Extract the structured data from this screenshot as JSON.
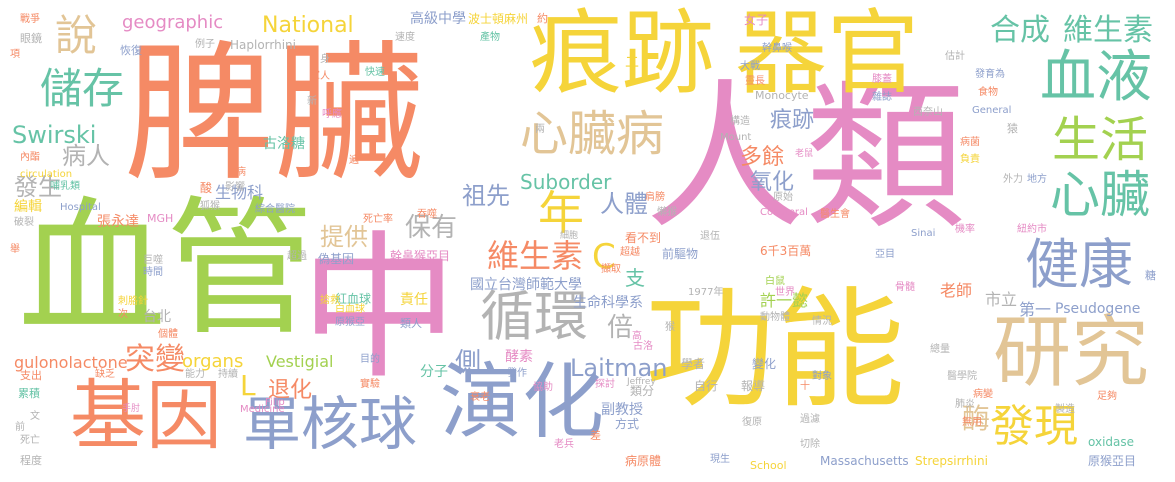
{
  "palette": {
    "salmon": "#f58a65",
    "yellow": "#f5d43a",
    "pink": "#e58bc4",
    "green": "#a3d150",
    "blue": "#8d9fcb",
    "teal": "#66c3a6",
    "tan": "#e2c596",
    "gray": "#b3b3b3"
  },
  "words": [
    {
      "text": "脾臟",
      "color": "salmon"
    },
    {
      "text": "人類",
      "color": "pink"
    },
    {
      "text": "血管",
      "color": "green"
    },
    {
      "text": "中",
      "color": "pink"
    },
    {
      "text": "功能",
      "color": "yellow"
    },
    {
      "text": "痕跡",
      "color": "yellow"
    },
    {
      "text": "器官",
      "color": "yellow"
    },
    {
      "text": "基因",
      "color": "salmon"
    },
    {
      "text": "演化",
      "color": "blue"
    },
    {
      "text": "研究",
      "color": "tan"
    },
    {
      "text": "單核球",
      "color": "blue"
    },
    {
      "text": "血液",
      "color": "teal"
    },
    {
      "text": "健康",
      "color": "blue"
    },
    {
      "text": "循環",
      "color": "gray"
    },
    {
      "text": "心臟",
      "color": "teal"
    },
    {
      "text": "生活",
      "color": "green"
    },
    {
      "text": "心臟病",
      "color": "tan"
    },
    {
      "text": "發現",
      "color": "yellow"
    },
    {
      "text": "儲存",
      "color": "teal"
    },
    {
      "text": "說",
      "color": "tan"
    },
    {
      "text": "合成",
      "color": "teal"
    },
    {
      "text": "維生素",
      "color": "teal"
    },
    {
      "text": "維生素",
      "color": "salmon"
    },
    {
      "text": "C",
      "color": "yellow"
    },
    {
      "text": "年",
      "color": "yellow"
    },
    {
      "text": "突變",
      "color": "salmon"
    },
    {
      "text": "Laitman",
      "color": "blue"
    },
    {
      "text": "Suborder",
      "color": "teal"
    },
    {
      "text": "National",
      "color": "yellow"
    },
    {
      "text": "geographic",
      "color": "pink"
    },
    {
      "text": "Swirski",
      "color": "teal"
    },
    {
      "text": "病人",
      "color": "gray"
    },
    {
      "text": "發生",
      "color": "gray"
    },
    {
      "text": "保有",
      "color": "gray"
    },
    {
      "text": "祖先",
      "color": "blue"
    },
    {
      "text": "提供",
      "color": "tan"
    },
    {
      "text": "人體",
      "color": "blue"
    },
    {
      "text": "氧化",
      "color": "blue"
    },
    {
      "text": "多餘",
      "color": "salmon"
    },
    {
      "text": "痕跡",
      "color": "blue"
    },
    {
      "text": "L",
      "color": "yellow"
    },
    {
      "text": "退化",
      "color": "salmon"
    },
    {
      "text": "側",
      "color": "blue"
    },
    {
      "text": "倍",
      "color": "gray"
    },
    {
      "text": "酶",
      "color": "tan"
    },
    {
      "text": "支",
      "color": "teal"
    },
    {
      "text": "organs",
      "color": "yellow"
    },
    {
      "text": "Vestigial",
      "color": "green"
    },
    {
      "text": "gulonolactone",
      "color": "salmon"
    },
    {
      "text": "生物科",
      "color": "blue"
    },
    {
      "text": "古洛糖",
      "color": "teal"
    },
    {
      "text": "Haplorrhini",
      "color": "gray"
    },
    {
      "text": "高級中學",
      "color": "blue"
    },
    {
      "text": "波士頓麻州",
      "color": "yellow"
    },
    {
      "text": "國立台灣師範大學",
      "color": "blue"
    },
    {
      "text": "生命科學系",
      "color": "blue"
    },
    {
      "text": "許一懿",
      "color": "green"
    },
    {
      "text": "老師",
      "color": "salmon"
    },
    {
      "text": "市立",
      "color": "gray"
    },
    {
      "text": "第一",
      "color": "blue"
    },
    {
      "text": "Pseudogene",
      "color": "blue"
    },
    {
      "text": "責任",
      "color": "yellow"
    },
    {
      "text": "紅血球",
      "color": "teal"
    },
    {
      "text": "台北",
      "color": "gray"
    },
    {
      "text": "分子",
      "color": "teal"
    },
    {
      "text": "酵素",
      "color": "pink"
    },
    {
      "text": "副教授",
      "color": "blue"
    },
    {
      "text": "oxidase",
      "color": "teal"
    },
    {
      "text": "原猴亞目",
      "color": "blue"
    },
    {
      "text": "Strepsirrhini",
      "color": "yellow"
    },
    {
      "text": "Massachusetts",
      "color": "blue"
    },
    {
      "text": "School",
      "color": "yellow"
    },
    {
      "text": "病原體",
      "color": "salmon"
    },
    {
      "text": "老兵",
      "color": "pink"
    },
    {
      "text": "程度",
      "color": "gray"
    },
    {
      "text": "類分",
      "color": "gray"
    },
    {
      "text": "學者",
      "color": "gray"
    },
    {
      "text": "變化",
      "color": "blue"
    },
    {
      "text": "報導",
      "color": "gray"
    },
    {
      "text": "自行",
      "color": "gray"
    },
    {
      "text": "方式",
      "color": "blue"
    },
    {
      "text": "看不到",
      "color": "salmon"
    },
    {
      "text": "細胞",
      "color": "gray"
    },
    {
      "text": "前驅物",
      "color": "blue"
    },
    {
      "text": "6千3百萬",
      "color": "salmon"
    },
    {
      "text": "1977年",
      "color": "gray"
    },
    {
      "text": "偽基因",
      "color": "blue"
    },
    {
      "text": "幹鼻猴亞目",
      "color": "pink"
    },
    {
      "text": "超過",
      "color": "gray"
    },
    {
      "text": "張永達",
      "color": "salmon"
    },
    {
      "text": "MGH",
      "color": "pink"
    },
    {
      "text": "Hospital",
      "color": "blue"
    },
    {
      "text": "綜合醫院",
      "color": "blue"
    },
    {
      "text": "影響",
      "color": "gray"
    },
    {
      "text": "酸",
      "color": "salmon"
    },
    {
      "text": "狐猴",
      "color": "gray"
    },
    {
      "text": "編輯",
      "color": "yellow"
    },
    {
      "text": "哺乳類",
      "color": "teal"
    },
    {
      "text": "circulation",
      "color": "yellow"
    },
    {
      "text": "內酯",
      "color": "salmon"
    },
    {
      "text": "Collateral",
      "color": "pink"
    },
    {
      "text": "Monocyte",
      "color": "gray"
    },
    {
      "text": "General",
      "color": "blue"
    },
    {
      "text": "Mount",
      "color": "gray"
    },
    {
      "text": "Sinai",
      "color": "blue"
    },
    {
      "text": "亞目",
      "color": "blue"
    },
    {
      "text": "Medicine",
      "color": "pink"
    },
    {
      "text": "Filip",
      "color": "pink"
    },
    {
      "text": "Jeffrey",
      "color": "gray"
    },
    {
      "text": "醫學院",
      "color": "gray"
    },
    {
      "text": "肺炎",
      "color": "gray"
    },
    {
      "text": "總量",
      "color": "gray"
    },
    {
      "text": "製造",
      "color": "gray"
    },
    {
      "text": "無用",
      "color": "salmon"
    },
    {
      "text": "戰爭",
      "color": "salmon"
    },
    {
      "text": "眼鏡",
      "color": "gray"
    },
    {
      "text": "恢復",
      "color": "blue"
    },
    {
      "text": "例子",
      "color": "gray"
    },
    {
      "text": "速度",
      "color": "gray"
    },
    {
      "text": "產物",
      "color": "teal"
    },
    {
      "text": "約",
      "color": "salmon"
    },
    {
      "text": "女子",
      "color": "pink"
    },
    {
      "text": "幹鼻喉",
      "color": "blue"
    },
    {
      "text": "大戰",
      "color": "blue"
    },
    {
      "text": "靈長",
      "color": "salmon"
    },
    {
      "text": "估計",
      "color": "gray"
    },
    {
      "text": "發育為",
      "color": "blue"
    },
    {
      "text": "膝蓋",
      "color": "pink"
    },
    {
      "text": "雜誌",
      "color": "blue"
    },
    {
      "text": "食物",
      "color": "salmon"
    },
    {
      "text": "快速",
      "color": "teal"
    },
    {
      "text": "軍人",
      "color": "salmon"
    },
    {
      "text": "呼應",
      "color": "pink"
    },
    {
      "text": "新",
      "color": "gray"
    },
    {
      "text": "身",
      "color": "gray"
    },
    {
      "text": "構造",
      "color": "gray"
    },
    {
      "text": "原始",
      "color": "gray"
    },
    {
      "text": "老鼠",
      "color": "pink"
    },
    {
      "text": "負責",
      "color": "yellow"
    },
    {
      "text": "外力",
      "color": "gray"
    },
    {
      "text": "地方",
      "color": "blue"
    },
    {
      "text": "病菌",
      "color": "salmon"
    },
    {
      "text": "猿",
      "color": "gray"
    },
    {
      "text": "醫生會",
      "color": "salmon"
    },
    {
      "text": "機率",
      "color": "pink"
    },
    {
      "text": "紐約市",
      "color": "pink"
    },
    {
      "text": "骨髓",
      "color": "pink"
    },
    {
      "text": "糖",
      "color": "blue"
    },
    {
      "text": "世界",
      "color": "pink"
    },
    {
      "text": "情況",
      "color": "gray"
    },
    {
      "text": "動物體",
      "color": "gray"
    },
    {
      "text": "白鼠",
      "color": "green"
    },
    {
      "text": "猴",
      "color": "gray"
    },
    {
      "text": "搶救",
      "color": "yellow"
    },
    {
      "text": "協助",
      "color": "pink"
    },
    {
      "text": "實驗",
      "color": "salmon"
    },
    {
      "text": "目的",
      "color": "blue"
    },
    {
      "text": "持續",
      "color": "gray"
    },
    {
      "text": "能力",
      "color": "gray"
    },
    {
      "text": "缺乏",
      "color": "salmon"
    },
    {
      "text": "支出",
      "color": "salmon"
    },
    {
      "text": "累積",
      "color": "teal"
    },
    {
      "text": "文",
      "color": "gray"
    },
    {
      "text": "前",
      "color": "gray"
    },
    {
      "text": "死亡",
      "color": "gray"
    },
    {
      "text": "手肘",
      "color": "pink"
    },
    {
      "text": "衰老",
      "color": "salmon"
    },
    {
      "text": "發作",
      "color": "blue"
    },
    {
      "text": "探討",
      "color": "pink"
    },
    {
      "text": "差",
      "color": "salmon"
    },
    {
      "text": "復原",
      "color": "gray"
    },
    {
      "text": "現生",
      "color": "blue"
    },
    {
      "text": "切除",
      "color": "gray"
    },
    {
      "text": "過濾",
      "color": "gray"
    },
    {
      "text": "病變",
      "color": "salmon"
    },
    {
      "text": "足夠",
      "color": "salmon"
    },
    {
      "text": "刺胳針",
      "color": "yellow"
    },
    {
      "text": "個體",
      "color": "salmon"
    },
    {
      "text": "次",
      "color": "salmon"
    },
    {
      "text": "時間",
      "color": "blue"
    },
    {
      "text": "巨噬",
      "color": "gray"
    },
    {
      "text": "舉",
      "color": "salmon"
    },
    {
      "text": "破裂",
      "color": "gray"
    },
    {
      "text": "死亡率",
      "color": "salmon"
    },
    {
      "text": "吞噬",
      "color": "salmon"
    },
    {
      "text": "擷取",
      "color": "salmon"
    },
    {
      "text": "肩膀",
      "color": "salmon"
    },
    {
      "text": "懶猴",
      "color": "gray"
    },
    {
      "text": "退伍",
      "color": "gray"
    },
    {
      "text": "超越",
      "color": "salmon"
    },
    {
      "text": "類人",
      "color": "blue"
    },
    {
      "text": "原猴亞",
      "color": "blue"
    },
    {
      "text": "白血球",
      "color": "yellow"
    },
    {
      "text": "古洛",
      "color": "pink"
    },
    {
      "text": "高",
      "color": "pink"
    },
    {
      "text": "兩",
      "color": "gray"
    },
    {
      "text": "十",
      "color": "salmon"
    },
    {
      "text": "對象",
      "color": "blue"
    },
    {
      "text": "西奈山",
      "color": "gray"
    },
    {
      "text": "項",
      "color": "salmon"
    },
    {
      "text": "二",
      "color": "yellow"
    },
    {
      "text": "病",
      "color": "salmon"
    },
    {
      "text": "遍",
      "color": "salmon"
    }
  ]
}
